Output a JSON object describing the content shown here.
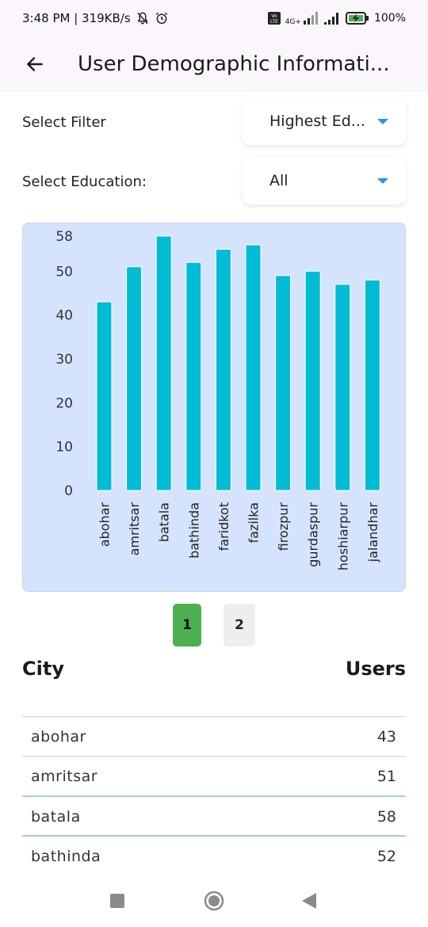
{
  "status_bar": {
    "time_speed": "3:48 PM | 319KB/s",
    "network": "4G+",
    "battery": "100%"
  },
  "app_bar": {
    "title": "User Demographic Informati..."
  },
  "filters": {
    "filter_label": "Select Filter",
    "filter_value": "Highest Ed...",
    "education_label": "Select Education:",
    "education_value": "All"
  },
  "chart_data": {
    "type": "bar",
    "categories": [
      "abohar",
      "amritsar",
      "batala",
      "bathinda",
      "faridkot",
      "fazilka",
      "firozpur",
      "gurdaspur",
      "hoshiarpur",
      "jalandhar"
    ],
    "values": [
      43,
      51,
      58,
      52,
      55,
      56,
      49,
      50,
      47,
      48
    ],
    "yticks": [
      "0",
      "10",
      "20",
      "30",
      "40",
      "50",
      "58"
    ],
    "ylim": [
      0,
      58
    ],
    "bar_color": "#00bcd4",
    "background": "#d6e3fd",
    "grid": false
  },
  "pagination": {
    "pages": [
      "1",
      "2"
    ],
    "active": "1",
    "active_color": "#4caf50"
  },
  "table": {
    "headers": {
      "city": "City",
      "users": "Users"
    },
    "rows": [
      {
        "city": "abohar",
        "users": "43"
      },
      {
        "city": "amritsar",
        "users": "51"
      },
      {
        "city": "batala",
        "users": "58"
      },
      {
        "city": "bathinda",
        "users": "52"
      }
    ]
  }
}
